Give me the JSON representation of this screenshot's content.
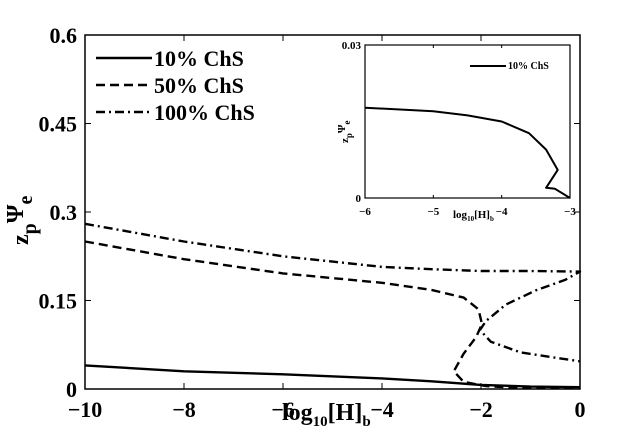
{
  "chart_data": [
    {
      "type": "line",
      "xlabel": "log10[H]b",
      "ylabel": "zpΨe",
      "xlim": [
        -10,
        0
      ],
      "ylim": [
        0,
        0.6
      ],
      "x_ticks": [
        "−10",
        "−8",
        "−6",
        "−4",
        "−2",
        "0"
      ],
      "y_ticks": [
        "0",
        "0.15",
        "0.3",
        "0.45",
        "0.6"
      ],
      "legend_position": "top-left",
      "series": [
        {
          "name": "10% ChS",
          "style": "solid",
          "color": "#000000",
          "points": [
            [
              -10,
              0.04
            ],
            [
              -8,
              0.03
            ],
            [
              -6,
              0.025
            ],
            [
              -4,
              0.018
            ],
            [
              -3,
              0.013
            ],
            [
              -2,
              0.007
            ],
            [
              -1,
              0.004
            ],
            [
              0,
              0.003
            ]
          ]
        },
        {
          "name": "50% ChS",
          "style": "dashed",
          "color": "#000000",
          "points": [
            [
              -10,
              0.25
            ],
            [
              -8,
              0.22
            ],
            [
              -6,
              0.196
            ],
            [
              -4,
              0.18
            ],
            [
              -3,
              0.168
            ],
            [
              -2.35,
              0.155
            ],
            [
              -2.05,
              0.135
            ],
            [
              -1.98,
              0.11
            ],
            [
              -2.1,
              0.088
            ],
            [
              -2.35,
              0.06
            ],
            [
              -2.55,
              0.03
            ],
            [
              -2.35,
              0.012
            ],
            [
              -1.9,
              0.005
            ],
            [
              -1.5,
              0.003
            ],
            [
              -1,
              0.002
            ],
            [
              0,
              0.002
            ]
          ]
        },
        {
          "name": "100% ChS",
          "style": "dash-dot",
          "color": "#000000",
          "points": [
            [
              -10,
              0.28
            ],
            [
              -8,
              0.25
            ],
            [
              -6,
              0.225
            ],
            [
              -4,
              0.207
            ],
            [
              -3,
              0.203
            ],
            [
              -2,
              0.2
            ],
            [
              -1,
              0.2
            ],
            [
              0,
              0.199
            ],
            [
              -0.3,
              0.185
            ],
            [
              -0.9,
              0.167
            ],
            [
              -1.5,
              0.143
            ],
            [
              -1.9,
              0.115
            ],
            [
              -2.02,
              0.1
            ],
            [
              -1.8,
              0.08
            ],
            [
              -1.2,
              0.062
            ],
            [
              -0.5,
              0.053
            ],
            [
              0,
              0.047
            ]
          ]
        }
      ]
    },
    {
      "type": "line",
      "xlabel": "log10[H]b",
      "ylabel": "zpΨe",
      "xlim": [
        -6,
        -3
      ],
      "ylim": [
        0,
        0.03
      ],
      "x_ticks": [
        "−6",
        "−5",
        "−4",
        "−3"
      ],
      "y_ticks": [
        "0",
        "0.03"
      ],
      "legend_position": "top-right",
      "series": [
        {
          "name": "10% ChS",
          "style": "solid",
          "color": "#000000",
          "points": [
            [
              -6,
              0.0177
            ],
            [
              -5,
              0.017
            ],
            [
              -4.5,
              0.0162
            ],
            [
              -4,
              0.015
            ],
            [
              -3.6,
              0.0127
            ],
            [
              -3.35,
              0.0095
            ],
            [
              -3.18,
              0.0055
            ],
            [
              -3.35,
              0.002
            ],
            [
              -3.22,
              0.0018
            ],
            [
              -3,
              0
            ]
          ]
        }
      ]
    }
  ]
}
